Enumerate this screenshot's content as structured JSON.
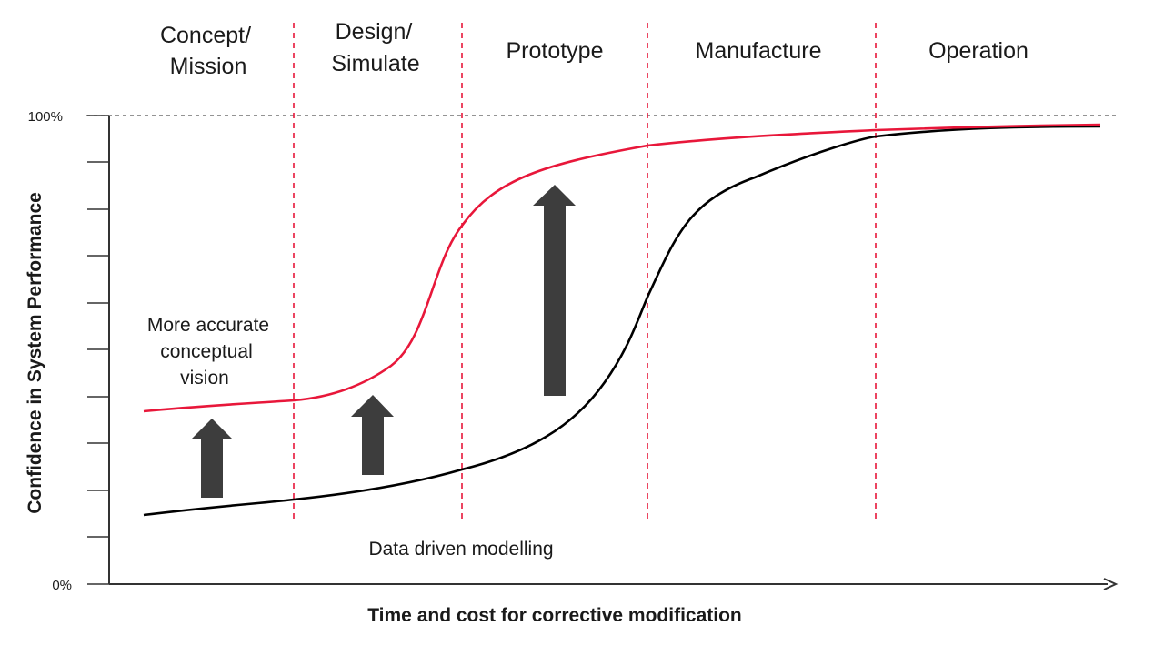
{
  "phases": [
    [
      "Concept/",
      "Mission"
    ],
    [
      "Design/",
      "Simulate"
    ],
    [
      "Prototype"
    ],
    [
      "Manufacture"
    ],
    [
      "Operation"
    ]
  ],
  "y_axis": {
    "label": "Confidence in System Performance",
    "top_tick": "100%",
    "bottom_tick": "0%"
  },
  "x_axis": {
    "label": "Time and cost for corrective modification"
  },
  "annotations": {
    "red_curve_label": [
      "More accurate",
      "conceptual",
      "vision"
    ],
    "black_curve_label": "Data driven modelling"
  },
  "colors": {
    "red_curve": "#e8173a",
    "black_curve": "#000000",
    "phase_divider": "#e8173a",
    "arrow": "#3d3d3d",
    "axis": "#333333"
  }
}
